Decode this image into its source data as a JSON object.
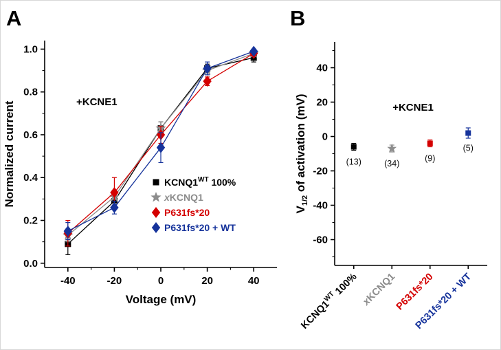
{
  "panels": {
    "a_label": "A",
    "b_label": "B"
  },
  "colors": {
    "wt_black": "#000000",
    "xkcnq1_gray": "#8c8c8c",
    "p631fs_red": "#d40000",
    "p631fs_wt_blue": "#16339b"
  },
  "chart_data": [
    {
      "type": "line",
      "panel": "A",
      "annotation": "+KCNE1",
      "xlabel": "Voltage (mV)",
      "ylabel": "Normalized current",
      "xlim": [
        -50,
        50
      ],
      "ylim": [
        -0.02,
        1.04
      ],
      "x": [
        -40,
        -20,
        0,
        20,
        40
      ],
      "xticks": [
        -40,
        -20,
        0,
        20,
        40
      ],
      "xtick_labels": [
        "-40",
        "-20",
        "0",
        "20",
        "40"
      ],
      "xminor": [
        -30,
        -10,
        10,
        30
      ],
      "yticks": [
        0,
        0.2,
        0.4,
        0.6,
        0.8,
        1.0
      ],
      "ytick_labels": [
        "0.0",
        "0.2",
        "0.4",
        "0.6",
        "0.8",
        "1.0"
      ],
      "yminor": [
        0.1,
        0.3,
        0.5,
        0.7,
        0.9
      ],
      "legend_position": "lower right",
      "grid": false,
      "series": [
        {
          "name": "KCNQ1WT 100%",
          "label_parts": [
            {
              "t": "KCNQ1"
            },
            {
              "t": "WT",
              "sup": true
            },
            {
              "t": " 100%"
            }
          ],
          "marker": "square",
          "color": "#000000",
          "values": [
            0.09,
            0.29,
            0.63,
            0.91,
            0.96
          ],
          "errors": [
            0.05,
            0.04,
            0.03,
            0.02,
            0.02
          ]
        },
        {
          "name": "xKCNQ1",
          "label_parts": [
            {
              "t": "x",
              "italic": true
            },
            {
              "t": "KCNQ1"
            }
          ],
          "marker": "star",
          "color": "#8c8c8c",
          "values": [
            0.13,
            0.31,
            0.63,
            0.9,
            0.98
          ],
          "errors": [
            0.03,
            0.03,
            0.03,
            0.02,
            0.015
          ]
        },
        {
          "name": "P631fs*20",
          "label_parts": [
            {
              "t": "P631fs*20"
            }
          ],
          "marker": "diamond",
          "color": "#d40000",
          "values": [
            0.14,
            0.33,
            0.6,
            0.85,
            0.98
          ],
          "errors": [
            0.06,
            0.07,
            0.04,
            0.02,
            0.01
          ]
        },
        {
          "name": "P631fs*20 + WT",
          "label_parts": [
            {
              "t": "P631fs*20 + WT"
            }
          ],
          "marker": "diamond",
          "color": "#16339b",
          "values": [
            0.15,
            0.26,
            0.54,
            0.91,
            0.99
          ],
          "errors": [
            0.04,
            0.03,
            0.07,
            0.03,
            0.01
          ]
        }
      ]
    },
    {
      "type": "scatter",
      "panel": "B",
      "annotation": "+KCNE1",
      "ylabel": "V1/2 of activation (mV)",
      "ylabel_parts": [
        {
          "t": "V"
        },
        {
          "t": "1/2",
          "sub": true
        },
        {
          "t": " of activation (mV)"
        }
      ],
      "ylim": [
        -75,
        55
      ],
      "yticks": [
        -60,
        -40,
        -20,
        0,
        20,
        40
      ],
      "ytick_labels": [
        "-60",
        "-40",
        "-20",
        "0",
        "20",
        "40"
      ],
      "yminor": [
        -70,
        -50,
        -30,
        -10,
        10,
        30,
        50
      ],
      "categories": [
        "KCNQ1WT 100%",
        "xKCNQ1",
        "P631fs*20",
        "P631fs*20 + WT"
      ],
      "grid": false,
      "points": [
        {
          "name": "KCNQ1WT 100%",
          "label_parts": [
            {
              "t": "KCNQ1"
            },
            {
              "t": "WT",
              "sup": true
            },
            {
              "t": " 100%"
            }
          ],
          "marker": "square",
          "color": "#000000",
          "value": -6,
          "error": 2,
          "n_label": "(13)"
        },
        {
          "name": "xKCNQ1",
          "label_parts": [
            {
              "t": "x",
              "italic": true
            },
            {
              "t": "KCNQ1"
            }
          ],
          "marker": "star",
          "color": "#8c8c8c",
          "value": -7,
          "error": 2,
          "n_label": "(34)"
        },
        {
          "name": "P631fs*20",
          "label_parts": [
            {
              "t": "P631fs*20"
            }
          ],
          "marker": "square",
          "color": "#d40000",
          "value": -4,
          "error": 2,
          "n_label": "(9)"
        },
        {
          "name": "P631fs*20 + WT",
          "label_parts": [
            {
              "t": "P631fs*20 + WT"
            }
          ],
          "marker": "square",
          "color": "#16339b",
          "value": 2,
          "error": 3,
          "n_label": "(5)"
        }
      ]
    }
  ]
}
